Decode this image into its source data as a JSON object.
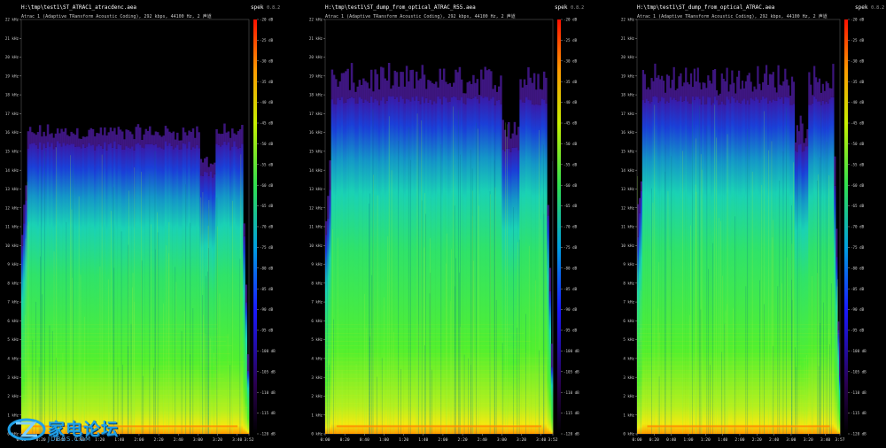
{
  "app": {
    "name": "spek",
    "version": "0.8.2"
  },
  "colors": {
    "background": "#000000",
    "watermark": "#1fa0e8"
  },
  "watermark": {
    "text": "家电论坛",
    "sub": "JDBBS.COM",
    "icon": "jdbbs-logo-icon"
  },
  "chart_data": [
    {
      "type": "heatmap",
      "title": "H:\\tmp\\test1\\ST_ATRAC1_atracdenc.aea",
      "subtitle": "Atrac 1 (Adaptive TRansform Acoustic Coding), 292 kbps, 44100 Hz, 2 声道",
      "ylabel_ticks": [
        "0 kHz",
        "1 kHz",
        "2 kHz",
        "3 kHz",
        "4 kHz",
        "5 kHz",
        "6 kHz",
        "7 kHz",
        "8 kHz",
        "9 kHz",
        "10 kHz",
        "11 kHz",
        "12 kHz",
        "13 kHz",
        "14 kHz",
        "15 kHz",
        "16 kHz",
        "17 kHz",
        "18 kHz",
        "19 kHz",
        "20 kHz",
        "21 kHz",
        "22 kHz"
      ],
      "ylim": [
        0,
        22
      ],
      "xlabel_ticks": [
        "0:00",
        "0:20",
        "0:40",
        "1:00",
        "1:20",
        "1:40",
        "2:00",
        "2:20",
        "2:40",
        "3:00",
        "3:20",
        "3:40",
        "3:52"
      ],
      "x_tick_seconds": [
        0,
        20,
        40,
        60,
        80,
        100,
        120,
        140,
        160,
        180,
        200,
        220,
        232
      ],
      "duration_seconds": 232,
      "legend_ticks": [
        "-120 dB",
        "-115 dB",
        "-110 dB",
        "-105 dB",
        "-100 dB",
        "-95 dB",
        "-90 dB",
        "-85 dB",
        "-80 dB",
        "-75 dB",
        "-70 dB",
        "-65 dB",
        "-60 dB",
        "-55 dB",
        "-50 dB",
        "-45 dB",
        "-40 dB",
        "-35 dB",
        "-30 dB",
        "-25 dB",
        "-20 dB"
      ],
      "legend_range_db": [
        -120,
        -20
      ],
      "cutoff_khz": 15.3,
      "lead_in_cutoff_khz": 13.5,
      "gap_segments_seconds": [
        [
          181,
          198
        ]
      ],
      "gap_cutoff_khz": 13.8
    },
    {
      "type": "heatmap",
      "title": "H:\\tmp\\test1\\ST_dump_from_optical_ATRAC_R55.aea",
      "subtitle": "Atrac 1 (Adaptive TRansform Acoustic Coding), 292 kbps, 44100 Hz, 2 声道",
      "ylabel_ticks": [
        "0 kHz",
        "1 kHz",
        "2 kHz",
        "3 kHz",
        "4 kHz",
        "5 kHz",
        "6 kHz",
        "7 kHz",
        "8 kHz",
        "9 kHz",
        "10 kHz",
        "11 kHz",
        "12 kHz",
        "13 kHz",
        "14 kHz",
        "15 kHz",
        "16 kHz",
        "17 kHz",
        "18 kHz",
        "19 kHz",
        "20 kHz",
        "21 kHz",
        "22 kHz"
      ],
      "ylim": [
        0,
        22
      ],
      "xlabel_ticks": [
        "0:00",
        "0:20",
        "0:40",
        "1:00",
        "1:20",
        "1:40",
        "2:00",
        "2:20",
        "2:40",
        "3:00",
        "3:20",
        "3:40",
        "3:52"
      ],
      "x_tick_seconds": [
        0,
        20,
        40,
        60,
        80,
        100,
        120,
        140,
        160,
        180,
        200,
        220,
        232
      ],
      "duration_seconds": 232,
      "legend_ticks": [
        "-120 dB",
        "-115 dB",
        "-110 dB",
        "-105 dB",
        "-100 dB",
        "-95 dB",
        "-90 dB",
        "-85 dB",
        "-80 dB",
        "-75 dB",
        "-70 dB",
        "-65 dB",
        "-60 dB",
        "-55 dB",
        "-50 dB",
        "-45 dB",
        "-40 dB",
        "-35 dB",
        "-30 dB",
        "-25 dB",
        "-20 dB"
      ],
      "legend_range_db": [
        -120,
        -20
      ],
      "cutoff_khz": 17.7,
      "lead_in_cutoff_khz": 14.0,
      "gap_segments_seconds": [
        [
          180,
          198
        ]
      ],
      "gap_cutoff_khz": 15.2
    },
    {
      "type": "heatmap",
      "title": "H:\\tmp\\test1\\ST_dump_from_optical_ATRAC.aea",
      "subtitle": "Atrac 1 (Adaptive TRansform Acoustic Coding), 292 kbps, 44100 Hz, 2 声道",
      "ylabel_ticks": [
        "0 kHz",
        "1 kHz",
        "2 kHz",
        "3 kHz",
        "4 kHz",
        "5 kHz",
        "6 kHz",
        "7 kHz",
        "8 kHz",
        "9 kHz",
        "10 kHz",
        "11 kHz",
        "12 kHz",
        "13 kHz",
        "14 kHz",
        "15 kHz",
        "16 kHz",
        "17 kHz",
        "18 kHz",
        "19 kHz",
        "20 kHz",
        "21 kHz",
        "22 kHz"
      ],
      "ylim": [
        0,
        22
      ],
      "xlabel_ticks": [
        "0:00",
        "0:20",
        "0:40",
        "1:00",
        "1:20",
        "1:40",
        "2:00",
        "2:20",
        "2:40",
        "3:00",
        "3:20",
        "3:40",
        "3:57"
      ],
      "x_tick_seconds": [
        0,
        20,
        40,
        60,
        80,
        100,
        120,
        140,
        160,
        180,
        200,
        220,
        237
      ],
      "duration_seconds": 237,
      "legend_ticks": [
        "-120 dB",
        "-115 dB",
        "-110 dB",
        "-105 dB",
        "-100 dB",
        "-95 dB",
        "-90 dB",
        "-85 dB",
        "-80 dB",
        "-75 dB",
        "-70 dB",
        "-65 dB",
        "-60 dB",
        "-55 dB",
        "-50 dB",
        "-45 dB",
        "-40 dB",
        "-35 dB",
        "-30 dB",
        "-25 dB",
        "-20 dB"
      ],
      "legend_range_db": [
        -120,
        -20
      ],
      "cutoff_khz": 17.7,
      "lead_in_cutoff_khz": 14.0,
      "gap_segments_seconds": [
        [
          183,
          200
        ]
      ],
      "gap_cutoff_khz": 15.2
    }
  ]
}
